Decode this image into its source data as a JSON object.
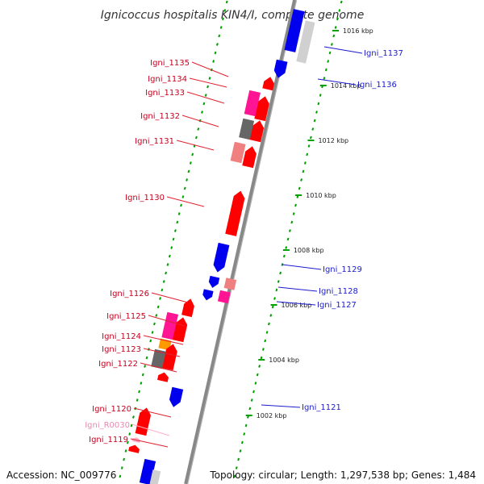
{
  "title": "Ignicoccus hospitalis KIN4/I, complete genome",
  "footer": {
    "accession": "Accession: NC_009776",
    "topology": "Topology: circular; Length: 1,297,538 bp; Genes: 1,484"
  },
  "colors": {
    "forward_gene": "#ff0000",
    "reverse_gene": "#0000ee",
    "magenta_gene": "#ff1493",
    "light_red_gene": "#f08080",
    "gray_gene": "#666666",
    "orange_gene": "#ff9900",
    "rna": "#ffb0c8",
    "tick": "#00a000",
    "backbone": "#888888"
  },
  "ticks": [
    {
      "label": "1016 kbp"
    },
    {
      "label": "1014 kbp"
    },
    {
      "label": "1012 kbp"
    },
    {
      "label": "1010 kbp"
    },
    {
      "label": "1008 kbp"
    },
    {
      "label": "1006 kbp"
    },
    {
      "label": "1004 kbp"
    },
    {
      "label": "1002 kbp"
    }
  ],
  "left_labels": [
    {
      "text": "Igni_1135",
      "kind": "red"
    },
    {
      "text": "Igni_1134",
      "kind": "red"
    },
    {
      "text": "Igni_1133",
      "kind": "red"
    },
    {
      "text": "Igni_1132",
      "kind": "red"
    },
    {
      "text": "Igni_1131",
      "kind": "red"
    },
    {
      "text": "Igni_1130",
      "kind": "red"
    },
    {
      "text": "Igni_1126",
      "kind": "red"
    },
    {
      "text": "Igni_1125",
      "kind": "red"
    },
    {
      "text": "Igni_1124",
      "kind": "red"
    },
    {
      "text": "Igni_1123",
      "kind": "red"
    },
    {
      "text": "Igni_1122",
      "kind": "red"
    },
    {
      "text": "Igni_1120",
      "kind": "red"
    },
    {
      "text": "Igni_R0030",
      "kind": "pink"
    },
    {
      "text": "Igni_1119",
      "kind": "red"
    }
  ],
  "right_labels": [
    {
      "text": "Igni_1137",
      "kind": "blue"
    },
    {
      "text": "Igni_1136",
      "kind": "blue"
    },
    {
      "text": "Igni_1129",
      "kind": "blue"
    },
    {
      "text": "Igni_1128",
      "kind": "blue"
    },
    {
      "text": "Igni_1127",
      "kind": "blue"
    },
    {
      "text": "Igni_1121",
      "kind": "blue"
    }
  ]
}
